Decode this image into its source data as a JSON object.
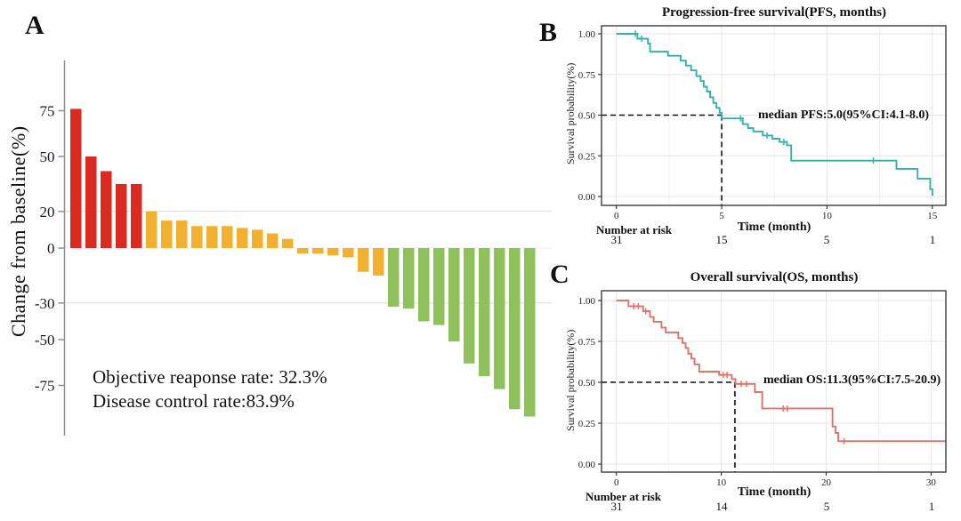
{
  "figure": {
    "panel_a_label": "A",
    "panel_b_label": "B",
    "panel_c_label": "C",
    "background": "#ffffff"
  },
  "chart_data": [
    {
      "id": "waterfall",
      "panel": "A",
      "type": "bar",
      "ylabel": "Change from baseline(%)",
      "ylim": [
        -100,
        100
      ],
      "yticks": [
        75,
        50,
        20,
        0,
        -30,
        -50,
        -75
      ],
      "gridlines": [
        20,
        0,
        -30
      ],
      "grid": "horizontal-light",
      "legend": false,
      "values": [
        76,
        50,
        42,
        35,
        35,
        20,
        15,
        15,
        12,
        12,
        12,
        11,
        10,
        8,
        5,
        -3,
        -3,
        -4,
        -5,
        -13,
        -15,
        -32,
        -33,
        -40,
        -42,
        -51,
        -63,
        -70,
        -77,
        -88,
        -92
      ],
      "groups": [
        "increase",
        "increase",
        "increase",
        "increase",
        "increase",
        "stable",
        "stable",
        "stable",
        "stable",
        "stable",
        "stable",
        "stable",
        "stable",
        "stable",
        "stable",
        "stable",
        "stable",
        "stable",
        "stable",
        "stable",
        "stable",
        "response",
        "response",
        "response",
        "response",
        "response",
        "response",
        "response",
        "response",
        "response",
        "response"
      ],
      "palette": {
        "increase": "#DA2A22",
        "stable": "#F1B02F",
        "response": "#8EC15B"
      },
      "annotations": {
        "objective_response": "Objective reaponse rate: 32.3%",
        "disease_control": "Disease control rate:83.9%"
      }
    },
    {
      "id": "pfs_km",
      "panel": "B",
      "type": "line",
      "title": "Progression-free survival(PFS, months)",
      "xlabel": "Time (month)",
      "ylabel": "Survival probability(%)",
      "xlim": [
        0,
        15.6
      ],
      "ylim": [
        0,
        1
      ],
      "xticks": [
        0,
        5,
        10,
        15
      ],
      "yticks": [
        1.0,
        0.75,
        0.5,
        0.25,
        0.0
      ],
      "ytick_labels": [
        "1.00",
        "0.75",
        "0.50",
        "0.25",
        "0.00"
      ],
      "color": "#35B2A8",
      "median_annotation": "median PFS:5.0(95%CI:4.1-8.0)",
      "median_time": 5.0,
      "median_survival": 0.5,
      "start": [
        0,
        1.0
      ],
      "end_time": 15.05,
      "steps": [
        [
          1.0,
          0.97
        ],
        [
          1.5,
          0.94
        ],
        [
          1.6,
          0.89
        ],
        [
          2.45,
          0.865
        ],
        [
          3.05,
          0.835
        ],
        [
          3.3,
          0.805
        ],
        [
          3.55,
          0.775
        ],
        [
          3.8,
          0.74
        ],
        [
          4.0,
          0.71
        ],
        [
          4.15,
          0.675
        ],
        [
          4.3,
          0.645
        ],
        [
          4.45,
          0.61
        ],
        [
          4.6,
          0.575
        ],
        [
          4.75,
          0.545
        ],
        [
          4.9,
          0.515
        ],
        [
          5.0,
          0.48
        ],
        [
          6.0,
          0.445
        ],
        [
          6.25,
          0.42
        ],
        [
          6.5,
          0.4
        ],
        [
          6.95,
          0.375
        ],
        [
          7.4,
          0.355
        ],
        [
          7.75,
          0.335
        ],
        [
          8.1,
          0.315
        ],
        [
          8.3,
          0.22
        ],
        [
          13.3,
          0.17
        ],
        [
          14.3,
          0.11
        ],
        [
          14.9,
          0.045
        ],
        [
          15.0,
          0.01
        ]
      ],
      "censors": [
        [
          0.9,
          1.0
        ],
        [
          1.2,
          0.97
        ],
        [
          5.9,
          0.48
        ],
        [
          7.15,
          0.375
        ],
        [
          7.95,
          0.335
        ],
        [
          12.2,
          0.22
        ]
      ],
      "number_at_risk": {
        "label": "Number at risk",
        "times": [
          0,
          5,
          10,
          15
        ],
        "values": [
          "31",
          "15",
          "5",
          "1"
        ]
      }
    },
    {
      "id": "os_km",
      "panel": "C",
      "type": "line",
      "title": "Overall survival(OS, months)",
      "xlabel": "Time (month)",
      "ylabel": "Survival probability(%)",
      "xlim": [
        0,
        31.4
      ],
      "ylim": [
        0,
        1
      ],
      "xticks": [
        0,
        10,
        20,
        30
      ],
      "yticks": [
        1.0,
        0.75,
        0.5,
        0.25,
        0.0
      ],
      "ytick_labels": [
        "1.00",
        "0.75",
        "0.50",
        "0.25",
        "0.00"
      ],
      "color": "#E0746B",
      "median_annotation": "median OS:11.3(95%CI:7.5-20.9)",
      "median_time": 11.3,
      "median_survival": 0.5,
      "start": [
        0,
        1.0
      ],
      "end_time": 31.4,
      "steps": [
        [
          1.15,
          0.965
        ],
        [
          2.55,
          0.935
        ],
        [
          3.2,
          0.9
        ],
        [
          3.55,
          0.87
        ],
        [
          4.3,
          0.835
        ],
        [
          4.7,
          0.805
        ],
        [
          5.9,
          0.77
        ],
        [
          6.3,
          0.74
        ],
        [
          6.6,
          0.71
        ],
        [
          6.85,
          0.675
        ],
        [
          7.15,
          0.645
        ],
        [
          7.45,
          0.61
        ],
        [
          7.9,
          0.565
        ],
        [
          9.8,
          0.545
        ],
        [
          11.0,
          0.52
        ],
        [
          11.35,
          0.49
        ],
        [
          13.2,
          0.44
        ],
        [
          13.9,
          0.34
        ],
        [
          20.6,
          0.23
        ],
        [
          20.9,
          0.19
        ],
        [
          21.15,
          0.14
        ]
      ],
      "censors": [
        [
          1.65,
          0.965
        ],
        [
          2.1,
          0.965
        ],
        [
          2.8,
          0.935
        ],
        [
          10.2,
          0.545
        ],
        [
          10.55,
          0.545
        ],
        [
          11.9,
          0.49
        ],
        [
          12.4,
          0.49
        ],
        [
          15.9,
          0.34
        ],
        [
          16.3,
          0.34
        ],
        [
          21.7,
          0.14
        ]
      ],
      "number_at_risk": {
        "label": "Number at risk",
        "times": [
          0,
          10,
          20,
          30
        ],
        "values": [
          "31",
          "14",
          "5",
          "1"
        ]
      }
    }
  ]
}
